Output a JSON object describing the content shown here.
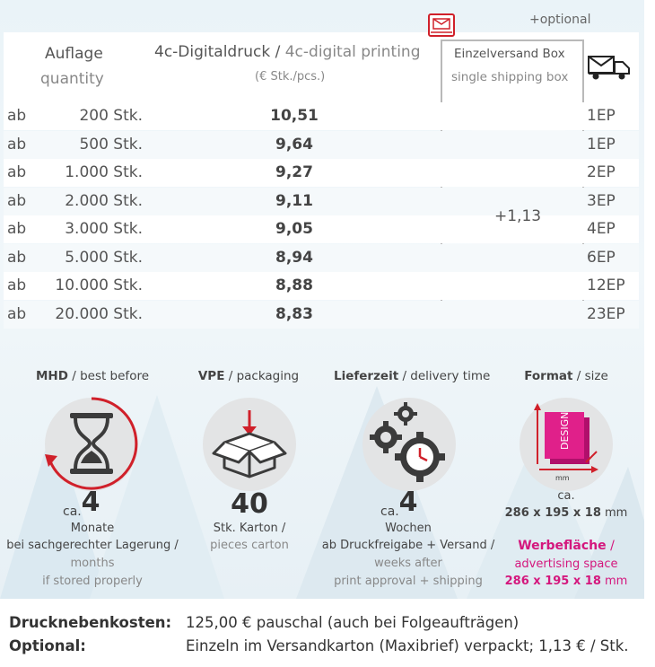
{
  "table": {
    "optional_label": "+optional",
    "header_quantity_de": "Auflage",
    "header_quantity_en": "quantity",
    "header_print_de": "4c-Digitaldruck",
    "header_print_sep": " / ",
    "header_print_en": "4c-digital printing",
    "header_unit": "(€ Stk./pcs.)",
    "header_box_de": "Einzelversand Box",
    "header_box_en": "single shipping box",
    "box_surcharge": "+1,13",
    "rows": [
      {
        "prefix": "ab",
        "qty": "200 Stk.",
        "price": "10,51",
        "ep": "1EP"
      },
      {
        "prefix": "ab",
        "qty": "500 Stk.",
        "price": "9,64",
        "ep": "1EP"
      },
      {
        "prefix": "ab",
        "qty": "1.000 Stk.",
        "price": "9,27",
        "ep": "2EP"
      },
      {
        "prefix": "ab",
        "qty": "2.000 Stk.",
        "price": "9,11",
        "ep": "3EP"
      },
      {
        "prefix": "ab",
        "qty": "3.000 Stk.",
        "price": "9,05",
        "ep": "4EP"
      },
      {
        "prefix": "ab",
        "qty": "5.000 Stk.",
        "price": "8,94",
        "ep": "6EP"
      },
      {
        "prefix": "ab",
        "qty": "10.000 Stk.",
        "price": "8,88",
        "ep": "12EP"
      },
      {
        "prefix": "ab",
        "qty": "20.000 Stk.",
        "price": "8,83",
        "ep": "23EP"
      }
    ]
  },
  "info": {
    "mhd": {
      "title_bold": "MHD",
      "title_rest": " / best before",
      "ca": "ca.",
      "value": "4",
      "unit": "Monate",
      "line1": "bei sachgerechter Lagerung /",
      "line2": "months",
      "line3": "if stored properly"
    },
    "vpe": {
      "title_bold": "VPE",
      "title_rest": " / packaging",
      "value": "40",
      "line1": "Stk. Karton /",
      "line2": "pieces carton"
    },
    "delivery": {
      "title_bold": "Lieferzeit",
      "title_rest": " / delivery time",
      "ca": "ca.",
      "value": "4",
      "unit": "Wochen",
      "line1": "ab Druckfreigabe + Versand /",
      "line2": "weeks after",
      "line3": "print approval + shipping"
    },
    "format": {
      "title_bold": "Format",
      "title_rest": " / size",
      "icon_text": "DESIGN",
      "icon_unit": "mm",
      "ca": "ca.",
      "size_num": "286 x 195 x 18",
      "size_unit": " mm",
      "ad_de": "Werbefläche",
      "ad_sep": " /",
      "ad_en": "advertising space",
      "ad_size_num": "286 x 195 x 18",
      "ad_size_unit": " mm"
    }
  },
  "footer": {
    "label1": "Drucknebenkosten:",
    "value1": "125,00 € pauschal (auch bei Folgeaufträgen)",
    "label2": "Optional:",
    "value2": "Einzeln im Versandkarton (Maxibrief) verpackt; 1,13 € / Stk."
  },
  "colors": {
    "accent_red": "#d0202a",
    "accent_pink": "#d4177d",
    "circle_grey": "#e3e4e5"
  }
}
